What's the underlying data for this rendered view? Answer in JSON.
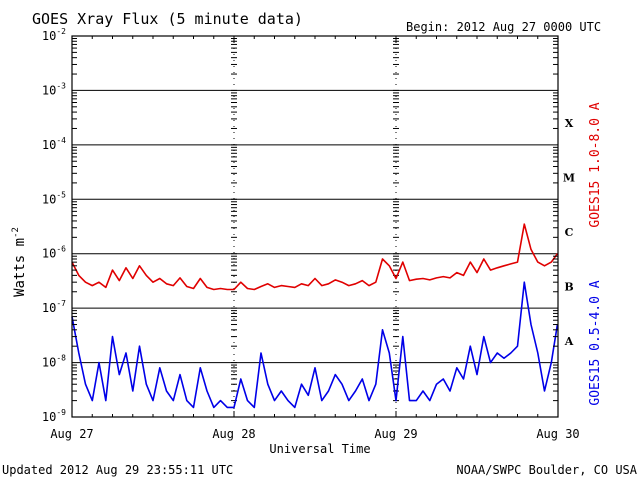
{
  "header": {
    "title": "GOES Xray Flux (5 minute data)",
    "begin": "Begin:  2012 Aug 27 0000 UTC"
  },
  "footer": {
    "updated": "Updated 2012 Aug 29 23:55:11 UTC",
    "source": "NOAA/SWPC Boulder, CO USA"
  },
  "colors": {
    "long_channel": "#e00000",
    "short_channel": "#0000e8",
    "axis": "#000000",
    "background": "#ffffff"
  },
  "chart_data": {
    "type": "line",
    "title": "GOES Xray Flux (5 minute data)",
    "xlabel": "Universal Time",
    "ylabel": "Watts m",
    "ylabel_superscript": "-2",
    "y_scale": "log",
    "ylim": [
      1e-09,
      0.01
    ],
    "xlim": [
      "2012-08-27 00:00",
      "2012-08-30 00:00"
    ],
    "grid": "horizontal lines at each decade; dashed vertical ticks at day boundaries",
    "x_ticks": [
      {
        "label": "Aug 27",
        "value": "2012-08-27 00:00"
      },
      {
        "label": "Aug 28",
        "value": "2012-08-28 00:00"
      },
      {
        "label": "Aug 29",
        "value": "2012-08-29 00:00"
      },
      {
        "label": "Aug 30",
        "value": "2012-08-30 00:00"
      }
    ],
    "y_ticks": [
      {
        "base": "10",
        "exp": "-2",
        "value": 0.01
      },
      {
        "base": "10",
        "exp": "-3",
        "value": 0.001
      },
      {
        "base": "10",
        "exp": "-4",
        "value": 0.0001
      },
      {
        "base": "10",
        "exp": "-5",
        "value": 1e-05
      },
      {
        "base": "10",
        "exp": "-6",
        "value": 1e-06
      },
      {
        "base": "10",
        "exp": "-7",
        "value": 1e-07
      },
      {
        "base": "10",
        "exp": "-8",
        "value": 1e-08
      },
      {
        "base": "10",
        "exp": "-9",
        "value": 1e-09
      }
    ],
    "flare_classes": [
      {
        "label": "X",
        "value": 0.00025
      },
      {
        "label": "M",
        "value": 2.5e-05
      },
      {
        "label": "C",
        "value": 2.5e-06
      },
      {
        "label": "B",
        "value": 2.5e-07
      },
      {
        "label": "A",
        "value": 2.5e-08
      }
    ],
    "series": [
      {
        "name": "GOES15 1.0-8.0 A",
        "color": "#e00000",
        "x": [
          "2012-08-27 00:00",
          "2012-08-27 01:00",
          "2012-08-27 02:00",
          "2012-08-27 03:00",
          "2012-08-27 04:00",
          "2012-08-27 05:00",
          "2012-08-27 06:00",
          "2012-08-27 07:00",
          "2012-08-27 08:00",
          "2012-08-27 09:00",
          "2012-08-27 10:00",
          "2012-08-27 11:00",
          "2012-08-27 12:00",
          "2012-08-27 13:00",
          "2012-08-27 14:00",
          "2012-08-27 15:00",
          "2012-08-27 16:00",
          "2012-08-27 17:00",
          "2012-08-27 18:00",
          "2012-08-27 19:00",
          "2012-08-27 20:00",
          "2012-08-27 21:00",
          "2012-08-27 22:00",
          "2012-08-27 23:00",
          "2012-08-28 00:00",
          "2012-08-28 01:00",
          "2012-08-28 02:00",
          "2012-08-28 03:00",
          "2012-08-28 04:00",
          "2012-08-28 05:00",
          "2012-08-28 06:00",
          "2012-08-28 07:00",
          "2012-08-28 08:00",
          "2012-08-28 09:00",
          "2012-08-28 10:00",
          "2012-08-28 11:00",
          "2012-08-28 12:00",
          "2012-08-28 13:00",
          "2012-08-28 14:00",
          "2012-08-28 15:00",
          "2012-08-28 16:00",
          "2012-08-28 17:00",
          "2012-08-28 18:00",
          "2012-08-28 19:00",
          "2012-08-28 20:00",
          "2012-08-28 21:00",
          "2012-08-28 22:00",
          "2012-08-28 23:00",
          "2012-08-29 00:00",
          "2012-08-29 01:00",
          "2012-08-29 02:00",
          "2012-08-29 03:00",
          "2012-08-29 04:00",
          "2012-08-29 05:00",
          "2012-08-29 06:00",
          "2012-08-29 07:00",
          "2012-08-29 08:00",
          "2012-08-29 09:00",
          "2012-08-29 10:00",
          "2012-08-29 11:00",
          "2012-08-29 12:00",
          "2012-08-29 13:00",
          "2012-08-29 14:00",
          "2012-08-29 15:00",
          "2012-08-29 16:00",
          "2012-08-29 17:00",
          "2012-08-29 18:00",
          "2012-08-29 19:00",
          "2012-08-29 20:00",
          "2012-08-29 21:00",
          "2012-08-29 22:00",
          "2012-08-29 23:00",
          "2012-08-29 23:55"
        ],
        "values": [
          7e-07,
          4e-07,
          3e-07,
          2.6e-07,
          3e-07,
          2.4e-07,
          5e-07,
          3.2e-07,
          5.5e-07,
          3.5e-07,
          6e-07,
          4e-07,
          3e-07,
          3.5e-07,
          2.8e-07,
          2.6e-07,
          3.6e-07,
          2.5e-07,
          2.3e-07,
          3.5e-07,
          2.4e-07,
          2.2e-07,
          2.3e-07,
          2.2e-07,
          2.2e-07,
          3e-07,
          2.3e-07,
          2.2e-07,
          2.5e-07,
          2.8e-07,
          2.4e-07,
          2.6e-07,
          2.5e-07,
          2.4e-07,
          2.8e-07,
          2.6e-07,
          3.5e-07,
          2.6e-07,
          2.8e-07,
          3.3e-07,
          3e-07,
          2.6e-07,
          2.8e-07,
          3.2e-07,
          2.6e-07,
          3e-07,
          8e-07,
          6e-07,
          3.5e-07,
          7e-07,
          3.2e-07,
          3.4e-07,
          3.5e-07,
          3.3e-07,
          3.6e-07,
          3.8e-07,
          3.6e-07,
          4.5e-07,
          4e-07,
          7e-07,
          4.5e-07,
          8e-07,
          5e-07,
          5.5e-07,
          6e-07,
          6.5e-07,
          7e-07,
          3.5e-06,
          1.2e-06,
          7e-07,
          6e-07,
          7e-07,
          1e-06
        ]
      },
      {
        "name": "GOES15 0.5-4.0 A",
        "color": "#0000e8",
        "x": [
          "2012-08-27 00:00",
          "2012-08-27 01:00",
          "2012-08-27 02:00",
          "2012-08-27 03:00",
          "2012-08-27 04:00",
          "2012-08-27 05:00",
          "2012-08-27 06:00",
          "2012-08-27 07:00",
          "2012-08-27 08:00",
          "2012-08-27 09:00",
          "2012-08-27 10:00",
          "2012-08-27 11:00",
          "2012-08-27 12:00",
          "2012-08-27 13:00",
          "2012-08-27 14:00",
          "2012-08-27 15:00",
          "2012-08-27 16:00",
          "2012-08-27 17:00",
          "2012-08-27 18:00",
          "2012-08-27 19:00",
          "2012-08-27 20:00",
          "2012-08-27 21:00",
          "2012-08-27 22:00",
          "2012-08-27 23:00",
          "2012-08-28 00:00",
          "2012-08-28 01:00",
          "2012-08-28 02:00",
          "2012-08-28 03:00",
          "2012-08-28 04:00",
          "2012-08-28 05:00",
          "2012-08-28 06:00",
          "2012-08-28 07:00",
          "2012-08-28 08:00",
          "2012-08-28 09:00",
          "2012-08-28 10:00",
          "2012-08-28 11:00",
          "2012-08-28 12:00",
          "2012-08-28 13:00",
          "2012-08-28 14:00",
          "2012-08-28 15:00",
          "2012-08-28 16:00",
          "2012-08-28 17:00",
          "2012-08-28 18:00",
          "2012-08-28 19:00",
          "2012-08-28 20:00",
          "2012-08-28 21:00",
          "2012-08-28 22:00",
          "2012-08-28 23:00",
          "2012-08-29 00:00",
          "2012-08-29 01:00",
          "2012-08-29 02:00",
          "2012-08-29 03:00",
          "2012-08-29 04:00",
          "2012-08-29 05:00",
          "2012-08-29 06:00",
          "2012-08-29 07:00",
          "2012-08-29 08:00",
          "2012-08-29 09:00",
          "2012-08-29 10:00",
          "2012-08-29 11:00",
          "2012-08-29 12:00",
          "2012-08-29 13:00",
          "2012-08-29 14:00",
          "2012-08-29 15:00",
          "2012-08-29 16:00",
          "2012-08-29 17:00",
          "2012-08-29 18:00",
          "2012-08-29 19:00",
          "2012-08-29 20:00",
          "2012-08-29 21:00",
          "2012-08-29 22:00",
          "2012-08-29 23:00",
          "2012-08-29 23:55"
        ],
        "values": [
          7e-08,
          1.5e-08,
          4e-09,
          2e-09,
          1e-08,
          2e-09,
          3e-08,
          6e-09,
          1.5e-08,
          3e-09,
          2e-08,
          4e-09,
          2e-09,
          8e-09,
          3e-09,
          2e-09,
          6e-09,
          2e-09,
          1.5e-09,
          8e-09,
          3e-09,
          1.5e-09,
          2e-09,
          1.5e-09,
          1.5e-09,
          5e-09,
          2e-09,
          1.5e-09,
          1.5e-08,
          4e-09,
          2e-09,
          3e-09,
          2e-09,
          1.5e-09,
          4e-09,
          2.5e-09,
          8e-09,
          2e-09,
          3e-09,
          6e-09,
          4e-09,
          2e-09,
          3e-09,
          5e-09,
          2e-09,
          4e-09,
          4e-08,
          1.5e-08,
          2e-09,
          3e-08,
          2e-09,
          2e-09,
          3e-09,
          2e-09,
          4e-09,
          5e-09,
          3e-09,
          8e-09,
          5e-09,
          2e-08,
          6e-09,
          3e-08,
          1e-08,
          1.5e-08,
          1.2e-08,
          1.5e-08,
          2e-08,
          3e-07,
          5e-08,
          1.5e-08,
          3e-09,
          1e-08,
          5e-08
        ]
      }
    ]
  }
}
